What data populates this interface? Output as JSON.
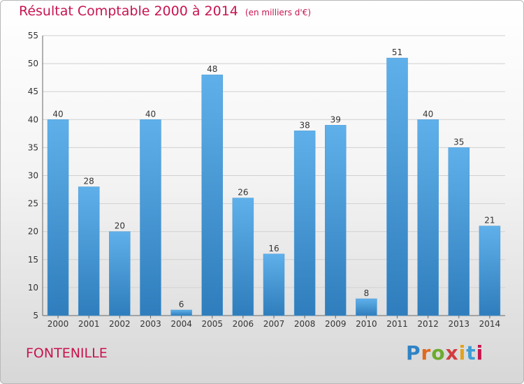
{
  "header": {
    "title": "Résultat Comptable 2000 à 2014",
    "unit": "(en milliers d'€)"
  },
  "footer": {
    "commune": "FONTENILLE",
    "logo": "Proxiti",
    "logo_colors": [
      "#2f83c5",
      "#e0691e",
      "#6cab2e",
      "#d23d3d",
      "#e3a21c",
      "#3e9dd6",
      "#c8144e"
    ]
  },
  "colors": {
    "title": "#c8144e",
    "bar_top": "#5fb0ea",
    "bar_bottom": "#2f7dbc",
    "grid": "#d0d0d0"
  },
  "chart_data": {
    "type": "bar",
    "title": "Résultat Comptable 2000 à 2014",
    "xlabel": "",
    "ylabel": "",
    "ylim": [
      5,
      55
    ],
    "yticks": [
      5,
      10,
      15,
      20,
      25,
      30,
      35,
      40,
      45,
      50,
      55
    ],
    "grid": true,
    "categories": [
      "2000",
      "2001",
      "2002",
      "2003",
      "2004",
      "2005",
      "2006",
      "2007",
      "2008",
      "2009",
      "2010",
      "2011",
      "2012",
      "2013",
      "2014"
    ],
    "values": [
      40,
      28,
      20,
      40,
      6,
      48,
      26,
      16,
      38,
      39,
      8,
      51,
      40,
      35,
      21
    ]
  }
}
